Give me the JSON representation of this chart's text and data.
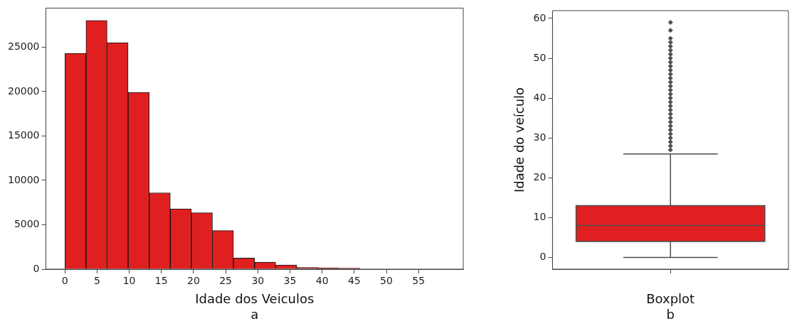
{
  "chart_data": [
    {
      "type": "histogram",
      "xlabel": "Idade dos Veiculos\na",
      "color": "#e02020",
      "bins": [
        0,
        3.28,
        6.56,
        9.83,
        13.11,
        16.39,
        19.67,
        22.94,
        26.22,
        29.5,
        32.78,
        36.06,
        39.33,
        42.61,
        45.89,
        49.17,
        52.44,
        55.72,
        59
      ],
      "values": [
        24300,
        28000,
        25500,
        19900,
        8600,
        6800,
        6350,
        4350,
        1250,
        800,
        470,
        200,
        150,
        120,
        null,
        null,
        null,
        null
      ],
      "xlim": [
        -2.95,
        61.95
      ],
      "xticks": [
        0,
        5,
        10,
        15,
        20,
        25,
        30,
        35,
        40,
        45,
        50,
        55
      ],
      "ylim": [
        0,
        29400
      ],
      "yticks": [
        0,
        5000,
        10000,
        15000,
        20000,
        25000
      ],
      "grid": false
    },
    {
      "type": "box",
      "ylabel": "Idade do veículo",
      "xlabel": "Boxplot\nb",
      "categories": [
        null
      ],
      "color": "#e02020",
      "marker": "diamond",
      "boxes": [
        {
          "low": 0,
          "q1": 4,
          "median": 8,
          "q3": 13,
          "high": 26,
          "outliers": [
            27,
            28,
            29,
            30,
            31,
            32,
            33,
            34,
            35,
            36,
            37,
            38,
            39,
            40,
            41,
            42,
            43,
            44,
            45,
            46,
            47,
            48,
            49,
            50,
            51,
            52,
            53,
            54,
            55,
            57,
            59
          ]
        }
      ],
      "ylim": [
        -2.95,
        61.95
      ],
      "yticks": [
        0,
        10,
        20,
        30,
        40,
        50,
        60
      ],
      "grid": false
    }
  ]
}
